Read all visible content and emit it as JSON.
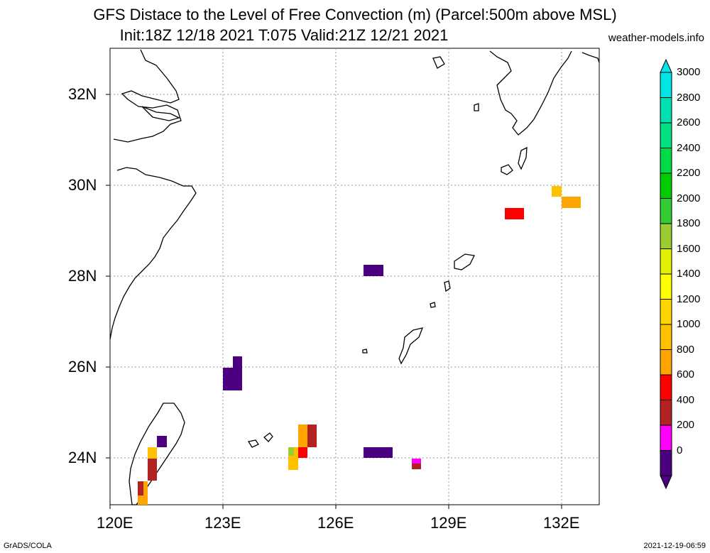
{
  "header": {
    "title_line1": "GFS Distace to the Level of Free Convection (m) (Parcel:500m above MSL)",
    "title_line2": "Init:18Z 12/18 2021 T:075 Valid:21Z 12/21 2021",
    "site": "weather-models.info"
  },
  "footer": {
    "left": "GrADS/COLA",
    "right": "2021-12-19-06:59"
  },
  "map": {
    "lon_labels": [
      "120E",
      "123E",
      "126E",
      "129E",
      "132E"
    ],
    "lat_labels": [
      "32N",
      "30N",
      "28N",
      "26N",
      "24N"
    ],
    "lon_range": [
      120,
      133
    ],
    "lat_range": [
      23,
      33
    ]
  },
  "colorbar": {
    "labels": [
      "3000",
      "2800",
      "2600",
      "2400",
      "2200",
      "2000",
      "1800",
      "1600",
      "1400",
      "1200",
      "1000",
      "800",
      "600",
      "400",
      "200",
      "0"
    ],
    "colors": [
      "#4b0082",
      "#ff00ff",
      "#b22222",
      "#ff0000",
      "#ffa500",
      "#ffc000",
      "#ffd700",
      "#ffff00",
      "#e0f000",
      "#9acd32",
      "#32cd32",
      "#00cc00",
      "#00dd44",
      "#00e080",
      "#00e0b0",
      "#00e5e5"
    ]
  }
}
